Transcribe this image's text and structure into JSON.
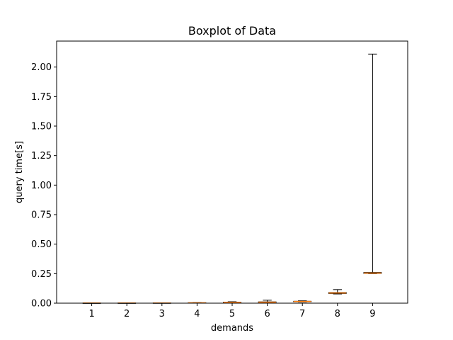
{
  "chart_data": {
    "type": "boxplot",
    "title": "Boxplot of Data",
    "xlabel": "demands",
    "ylabel": "query time[s]",
    "categories": [
      "1",
      "2",
      "3",
      "4",
      "5",
      "6",
      "7",
      "8",
      "9"
    ],
    "ylim": [
      0,
      2.22
    ],
    "yticks": [
      0.0,
      0.25,
      0.5,
      0.75,
      1.0,
      1.25,
      1.5,
      1.75,
      2.0
    ],
    "ytick_labels": [
      "0.00",
      "0.25",
      "0.50",
      "0.75",
      "1.00",
      "1.25",
      "1.50",
      "1.75",
      "2.00"
    ],
    "boxes": [
      {
        "min": 0.0008,
        "q1": 0.001,
        "median": 0.0012,
        "q3": 0.0014,
        "max": 0.0018
      },
      {
        "min": 0.001,
        "q1": 0.0012,
        "median": 0.0014,
        "q3": 0.0016,
        "max": 0.002
      },
      {
        "min": 0.0012,
        "q1": 0.0015,
        "median": 0.0017,
        "q3": 0.002,
        "max": 0.0025
      },
      {
        "min": 0.002,
        "q1": 0.0025,
        "median": 0.003,
        "q3": 0.0035,
        "max": 0.005
      },
      {
        "min": 0.005,
        "q1": 0.006,
        "median": 0.007,
        "q3": 0.009,
        "max": 0.012
      },
      {
        "min": 0.005,
        "q1": 0.0065,
        "median": 0.008,
        "q3": 0.011,
        "max": 0.025
      },
      {
        "min": 0.01,
        "q1": 0.012,
        "median": 0.014,
        "q3": 0.016,
        "max": 0.02
      },
      {
        "min": 0.078,
        "q1": 0.082,
        "median": 0.086,
        "q3": 0.09,
        "max": 0.115
      },
      {
        "min": 0.25,
        "q1": 0.252,
        "median": 0.255,
        "q3": 0.26,
        "max": 2.11
      }
    ],
    "colors": {
      "box": "#000000",
      "median": "#ff7f0e",
      "whisker": "#000000"
    },
    "grid": false
  }
}
